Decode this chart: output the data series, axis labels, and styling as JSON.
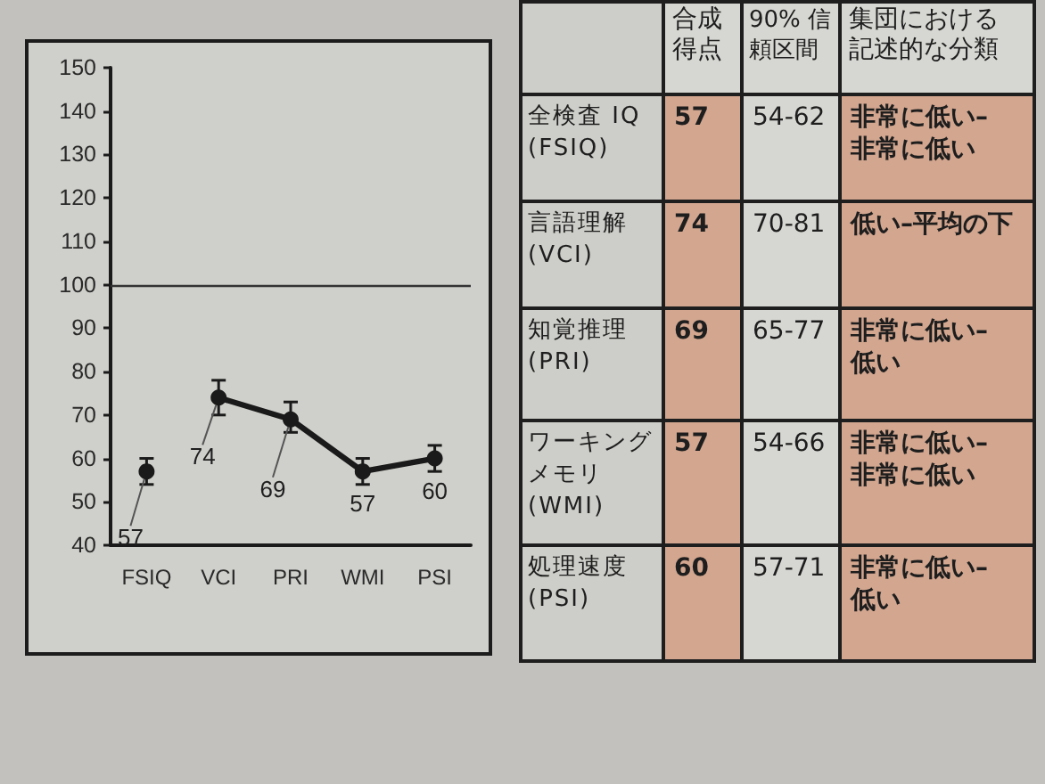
{
  "chart_data": [
    {
      "type": "line",
      "categories": [
        "FSIQ",
        "VCI",
        "PRI",
        "WMI",
        "PSI"
      ],
      "series": [
        {
          "color": "#1a1a1a",
          "values": [
            57,
            null,
            null,
            null,
            null
          ],
          "errors": [
            [
              54,
              60
            ],
            null,
            null,
            null,
            null
          ]
        },
        {
          "color": "#1a1a1a",
          "values": [
            null,
            74,
            69,
            57,
            60
          ],
          "errors": [
            null,
            [
              70,
              78
            ],
            [
              66,
              73
            ],
            [
              54,
              60
            ],
            [
              57,
              63
            ]
          ]
        }
      ],
      "ylim": [
        40,
        150
      ],
      "yticks": [
        40,
        50,
        60,
        70,
        80,
        90,
        100,
        110,
        120,
        130,
        140,
        150
      ],
      "ref_lines": [
        {
          "axis": "y",
          "value": 100,
          "color": "#333333"
        }
      ],
      "data_labels": true,
      "marker": "circle",
      "line_style": "solid",
      "grid": false
    },
    {
      "type": "other",
      "categories": [
        "合成得点",
        "90% 信頼区間",
        "集団における記述的な分類"
      ],
      "y_categories": [
        "全検査 IQ\n(FSIQ)",
        "言語理解\n(VCI)",
        "知覚推理\n(PRI)",
        "ワーキングメモリ\n(WMI)",
        "処理速度\n(PSI)"
      ],
      "cell_labels": [
        [
          "57",
          "54-62",
          "非常に低い–\n非常に低い"
        ],
        [
          "74",
          "70-81",
          "低い–平均の下"
        ],
        [
          "69",
          "65-77",
          "非常に低い–\n低い"
        ],
        [
          "57",
          "54-66",
          "非常に低い–\n非常に低い"
        ],
        [
          "60",
          "57-71",
          "非常に低い–\n低い"
        ]
      ]
    }
  ]
}
